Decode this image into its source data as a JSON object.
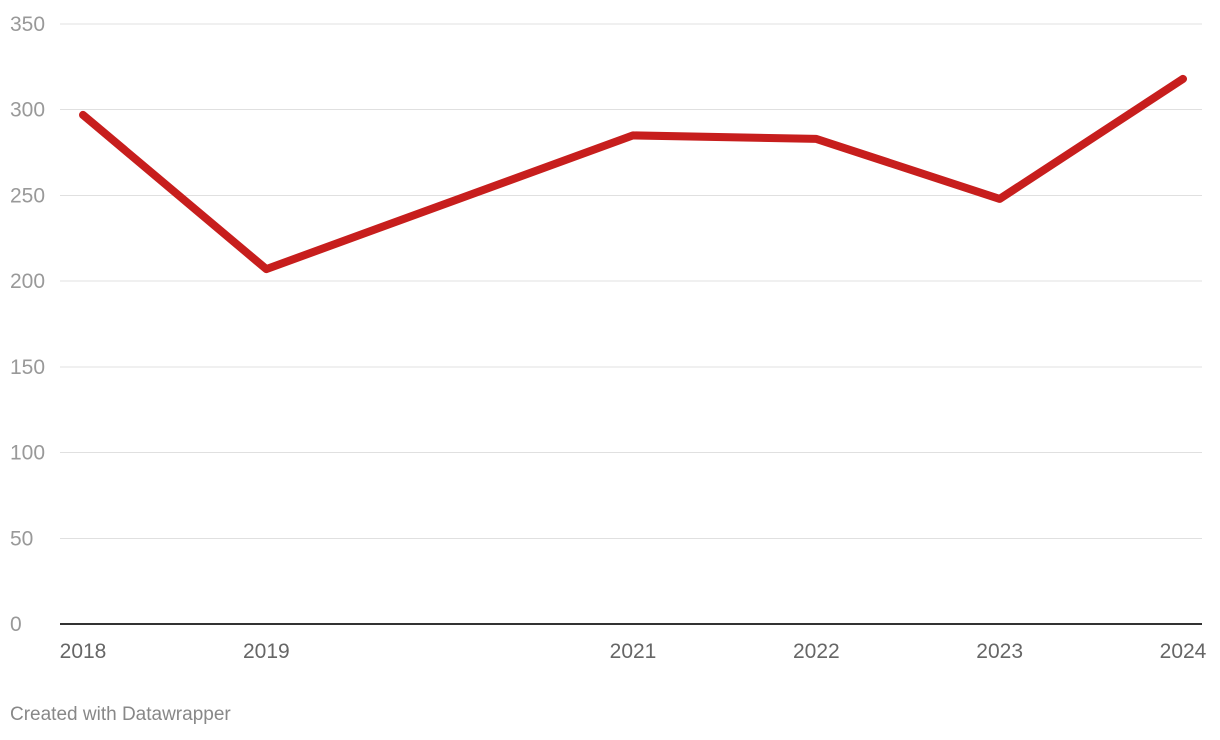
{
  "chart_data": {
    "type": "line",
    "x": [
      2018,
      2019,
      2021,
      2022,
      2023,
      2024
    ],
    "x_tick_labels": [
      "2018",
      "2019",
      "2021",
      "2022",
      "2023",
      "2024"
    ],
    "series": [
      {
        "values": [
          297,
          207,
          285,
          283,
          248,
          318
        ],
        "color": "#c71e1d"
      }
    ],
    "y_ticks": [
      0,
      50,
      100,
      150,
      200,
      250,
      300,
      350
    ],
    "y_tick_labels": [
      "0",
      "50",
      "100",
      "150",
      "200",
      "250",
      "300",
      "350"
    ],
    "xlim": [
      2018,
      2024
    ],
    "ylim": [
      0,
      350
    ],
    "grid": true,
    "title": "",
    "xlabel": "",
    "ylabel": "",
    "colors": {
      "line": "#c71e1d",
      "grid": "#e0e0e0",
      "baseline": "#333333"
    }
  },
  "footer": {
    "credit": "Created with Datawrapper"
  }
}
